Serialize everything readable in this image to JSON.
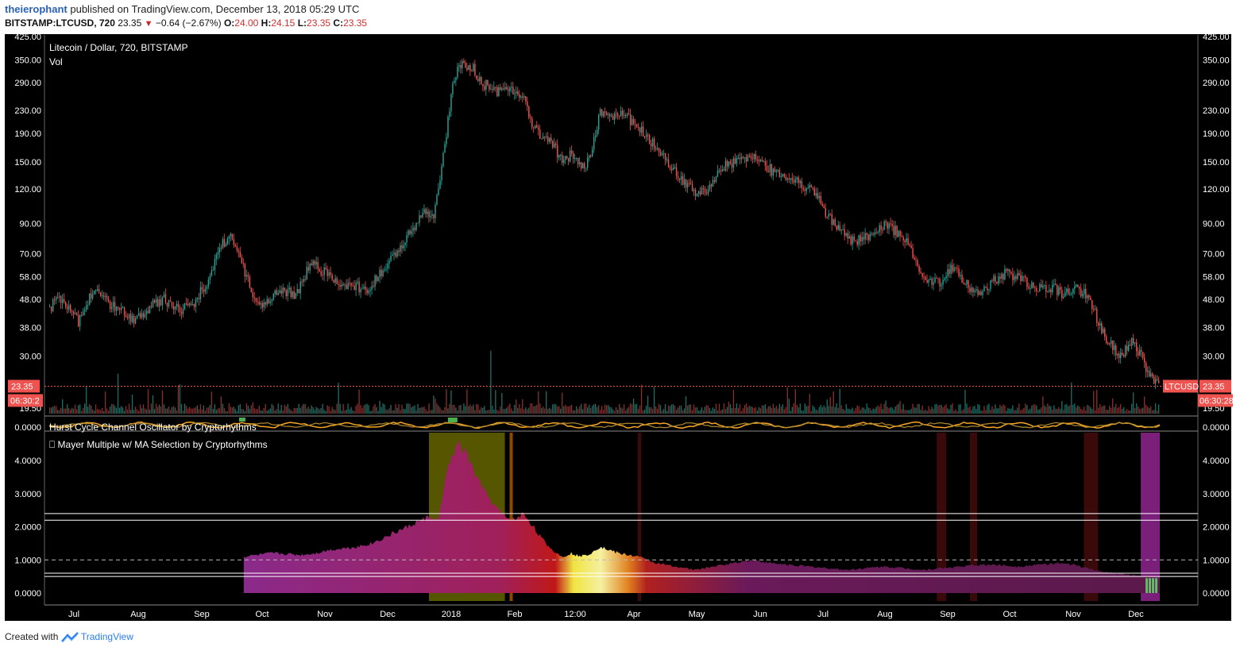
{
  "header": {
    "author": "theierophant",
    "published_text": "published on TradingView.com, December 13, 2018 05:29 UTC",
    "symbol_line": "BITSTAMP:LTCUSD, 720",
    "last": "23.35",
    "change": "−0.64 (−2.67%)",
    "o_label": "O:",
    "o_val": "24.00",
    "h_label": "H:",
    "h_val": "24.15",
    "l_label": "L:",
    "l_val": "23.35",
    "c_label": "C:",
    "c_val": "23.35"
  },
  "footer": {
    "created_with": "Created with",
    "brand": "TradingView"
  },
  "colors": {
    "background": "#000000",
    "up": "#26a69a",
    "down": "#ef5350",
    "label_red": "#ef5350",
    "hurst_orange": "#f5a623",
    "mayer_purple": "#7b1f6e",
    "mayer_yellow": "#f0e442",
    "green_bar": "#66bb6a"
  },
  "chart_data": [
    {
      "type": "candlestick",
      "title": "Litecoin / Dollar, 720, BITSTAMP",
      "indicator": "Vol",
      "scale": "log",
      "y_ticks": [
        "425.00",
        "350.00",
        "290.00",
        "230.00",
        "190.00",
        "150.00",
        "120.00",
        "90.00",
        "70.00",
        "58.00",
        "48.00",
        "38.00",
        "30.00",
        "19.50"
      ],
      "x_ticks": [
        "Jul",
        "Aug",
        "Sep",
        "Oct",
        "Nov",
        "Dec",
        "2018",
        "Feb",
        "12:00",
        "Apr",
        "May",
        "Jun",
        "Jul",
        "Aug",
        "Sep",
        "Oct",
        "Nov",
        "Dec"
      ],
      "last_price_label": "23.35",
      "countdown_label": "06:30:28",
      "countdown_label_left": "06:30:2",
      "symbol_label": "LTCUSD",
      "series_close": [
        [
          0,
          45
        ],
        [
          2,
          48
        ],
        [
          4,
          44
        ],
        [
          6,
          40
        ],
        [
          9,
          52
        ],
        [
          12,
          47
        ],
        [
          15,
          44
        ],
        [
          18,
          40
        ],
        [
          21,
          45
        ],
        [
          24,
          48
        ],
        [
          27,
          44
        ],
        [
          30,
          46
        ],
        [
          33,
          55
        ],
        [
          36,
          75
        ],
        [
          38,
          80
        ],
        [
          40,
          68
        ],
        [
          42,
          55
        ],
        [
          44,
          45
        ],
        [
          46,
          48
        ],
        [
          49,
          52
        ],
        [
          52,
          50
        ],
        [
          55,
          65
        ],
        [
          58,
          60
        ],
        [
          61,
          55
        ],
        [
          64,
          54
        ],
        [
          67,
          52
        ],
        [
          70,
          60
        ],
        [
          73,
          70
        ],
        [
          76,
          85
        ],
        [
          79,
          100
        ],
        [
          81,
          95
        ],
        [
          83,
          160
        ],
        [
          85,
          300
        ],
        [
          87,
          340
        ],
        [
          89,
          330
        ],
        [
          91,
          290
        ],
        [
          94,
          270
        ],
        [
          97,
          280
        ],
        [
          100,
          250
        ],
        [
          102,
          200
        ],
        [
          104,
          180
        ],
        [
          106,
          175
        ],
        [
          108,
          150
        ],
        [
          110,
          160
        ],
        [
          112,
          140
        ],
        [
          114,
          155
        ],
        [
          116,
          230
        ],
        [
          118,
          220
        ],
        [
          120,
          225
        ],
        [
          122,
          215
        ],
        [
          124,
          200
        ],
        [
          126,
          180
        ],
        [
          128,
          170
        ],
        [
          130,
          150
        ],
        [
          132,
          140
        ],
        [
          134,
          125
        ],
        [
          136,
          115
        ],
        [
          138,
          118
        ],
        [
          140,
          130
        ],
        [
          142,
          145
        ],
        [
          144,
          150
        ],
        [
          146,
          155
        ],
        [
          148,
          160
        ],
        [
          150,
          150
        ],
        [
          152,
          140
        ],
        [
          154,
          135
        ],
        [
          156,
          130
        ],
        [
          158,
          125
        ],
        [
          160,
          120
        ],
        [
          162,
          110
        ],
        [
          164,
          95
        ],
        [
          166,
          88
        ],
        [
          168,
          80
        ],
        [
          170,
          78
        ],
        [
          172,
          80
        ],
        [
          174,
          85
        ],
        [
          176,
          90
        ],
        [
          178,
          85
        ],
        [
          180,
          80
        ],
        [
          182,
          68
        ],
        [
          184,
          58
        ],
        [
          186,
          55
        ],
        [
          188,
          56
        ],
        [
          190,
          62
        ],
        [
          192,
          58
        ],
        [
          194,
          52
        ],
        [
          196,
          50
        ],
        [
          198,
          54
        ],
        [
          200,
          58
        ],
        [
          202,
          60
        ],
        [
          204,
          57
        ],
        [
          206,
          55
        ],
        [
          208,
          53
        ],
        [
          210,
          53
        ],
        [
          212,
          52
        ],
        [
          214,
          50
        ],
        [
          216,
          54
        ],
        [
          218,
          50
        ],
        [
          220,
          44
        ],
        [
          222,
          36
        ],
        [
          224,
          32
        ],
        [
          226,
          30
        ],
        [
          228,
          34
        ],
        [
          230,
          30
        ],
        [
          232,
          25
        ],
        [
          234,
          23.35
        ]
      ]
    },
    {
      "type": "line",
      "title": "Hurst Cycle Channel Oscillator by Cryptorhythms",
      "y_ticks": [
        "0.0000"
      ]
    },
    {
      "type": "area",
      "title": "Mayer Multiple w/ MA Selection by Cryptorhythms",
      "y_ticks": [
        "4.0000",
        "3.0000",
        "2.0000",
        "1.0000",
        "0.0000"
      ],
      "series": [
        {
          "values": [
            [
              41,
              1.1
            ],
            [
              44,
              1.15
            ],
            [
              47,
              1.2
            ],
            [
              50,
              1.18
            ],
            [
              53,
              1.15
            ],
            [
              56,
              1.2
            ],
            [
              59,
              1.3
            ],
            [
              62,
              1.35
            ],
            [
              65,
              1.4
            ],
            [
              68,
              1.5
            ],
            [
              71,
              1.7
            ],
            [
              74,
              1.9
            ],
            [
              77,
              2.1
            ],
            [
              80,
              2.3
            ],
            [
              82,
              2.2
            ],
            [
              84,
              3.8
            ],
            [
              86,
              4.5
            ],
            [
              88,
              4.2
            ],
            [
              90,
              3.5
            ],
            [
              92,
              3.0
            ],
            [
              94,
              2.6
            ],
            [
              96,
              2.3
            ],
            [
              98,
              2.2
            ],
            [
              100,
              2.4
            ],
            [
              102,
              2.0
            ],
            [
              104,
              1.6
            ],
            [
              106,
              1.3
            ],
            [
              108,
              1.1
            ],
            [
              110,
              1.2
            ],
            [
              112,
              1.1
            ],
            [
              114,
              1.2
            ],
            [
              116,
              1.4
            ],
            [
              118,
              1.3
            ],
            [
              120,
              1.2
            ],
            [
              124,
              1.1
            ],
            [
              128,
              0.9
            ],
            [
              132,
              0.8
            ],
            [
              136,
              0.7
            ],
            [
              140,
              0.8
            ],
            [
              144,
              0.9
            ],
            [
              148,
              1.0
            ],
            [
              152,
              0.9
            ],
            [
              156,
              0.85
            ],
            [
              160,
              0.8
            ],
            [
              164,
              0.75
            ],
            [
              168,
              0.7
            ],
            [
              172,
              0.75
            ],
            [
              176,
              0.8
            ],
            [
              180,
              0.75
            ],
            [
              184,
              0.7
            ],
            [
              188,
              0.75
            ],
            [
              192,
              0.8
            ],
            [
              196,
              0.85
            ],
            [
              200,
              0.85
            ],
            [
              204,
              0.8
            ],
            [
              208,
              0.85
            ],
            [
              212,
              0.9
            ],
            [
              216,
              0.85
            ],
            [
              220,
              0.7
            ],
            [
              224,
              0.6
            ],
            [
              228,
              0.55
            ],
            [
              232,
              0.5
            ],
            [
              234,
              0.45
            ]
          ]
        }
      ]
    }
  ]
}
